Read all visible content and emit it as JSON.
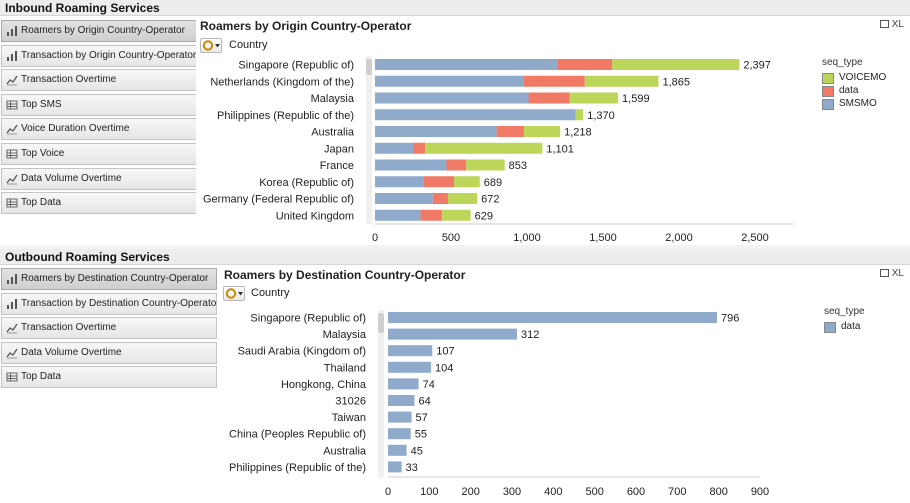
{
  "inbound": {
    "section_title": "Inbound Roaming Services",
    "nav": [
      {
        "label": "Roamers by Origin Country-Operator",
        "icon": "bar-chart-icon",
        "active": true
      },
      {
        "label": "Transaction by Origin Country-Operator",
        "icon": "bar-chart-icon",
        "active": false
      },
      {
        "label": "Transaction Overtime",
        "icon": "line-chart-icon",
        "active": false
      },
      {
        "label": "Top SMS",
        "icon": "table-icon",
        "active": false
      },
      {
        "label": "Voice Duration Overtime",
        "icon": "line-chart-icon",
        "active": false
      },
      {
        "label": "Top Voice",
        "icon": "table-icon",
        "active": false
      },
      {
        "label": "Data Volume Overtime",
        "icon": "line-chart-icon",
        "active": false
      },
      {
        "label": "Top Data",
        "icon": "table-icon",
        "active": false
      }
    ],
    "panel": {
      "title": "Roamers by Origin Country-Operator",
      "xl_label": "XL",
      "dimension_label": "Country"
    }
  },
  "outbound": {
    "section_title": "Outbound Roaming Services",
    "nav": [
      {
        "label": "Roamers by Destination Country-Operator",
        "icon": "bar-chart-icon",
        "active": true
      },
      {
        "label": "Transaction by Destination Country-Operator",
        "icon": "bar-chart-icon",
        "active": false
      },
      {
        "label": "Transaction Overtime",
        "icon": "line-chart-icon",
        "active": false
      },
      {
        "label": "Data Volume Overtime",
        "icon": "line-chart-icon",
        "active": false
      },
      {
        "label": "Top Data",
        "icon": "table-icon",
        "active": false
      }
    ],
    "panel": {
      "title": "Roamers by Destination Country-Operator",
      "xl_label": "XL",
      "dimension_label": "Country"
    }
  },
  "colors": {
    "SMSMO": "#8faacb",
    "data": "#f07a66",
    "VOICEMO": "#bcd65a",
    "outbound_data": "#8faacb"
  },
  "chart_data": [
    {
      "type": "bar",
      "orientation": "horizontal",
      "stacked": true,
      "title": "Roamers by Origin Country-Operator",
      "ylabel": "Country",
      "legend_title": "seq_type",
      "legend_placement": "right",
      "xlim": [
        0,
        2750
      ],
      "xticks": [
        0,
        500,
        1000,
        1500,
        2000,
        2500
      ],
      "xtick_labels": [
        "0",
        "500",
        "1,000",
        "1,500",
        "2,000",
        "2,500"
      ],
      "categories": [
        "Singapore (Republic of)",
        "Netherlands (Kingdom of the)",
        "Malaysia",
        "Philippines (Republic of the)",
        "Australia",
        "Japan",
        "France",
        "Korea (Republic of)",
        "Germany (Federal Republic of)",
        "United Kingdom"
      ],
      "totals": [
        2397,
        1865,
        1599,
        1370,
        1218,
        1101,
        853,
        689,
        672,
        629
      ],
      "total_labels": [
        "2,397",
        "1,865",
        "1,599",
        "1,370",
        "1,218",
        "1,101",
        "853",
        "689",
        "672",
        "629"
      ],
      "series": [
        {
          "name": "SMSMO",
          "values": [
            1200,
            980,
            1010,
            1320,
            800,
            250,
            470,
            320,
            380,
            300
          ]
        },
        {
          "name": "data",
          "values": [
            360,
            400,
            270,
            0,
            180,
            80,
            130,
            200,
            100,
            140
          ]
        },
        {
          "name": "VOICEMO",
          "values": [
            837,
            485,
            319,
            50,
            238,
            771,
            253,
            169,
            192,
            189
          ]
        }
      ],
      "legend_order": [
        "VOICEMO",
        "data",
        "SMSMO"
      ]
    },
    {
      "type": "bar",
      "orientation": "horizontal",
      "stacked": false,
      "title": "Roamers by Destination Country-Operator",
      "ylabel": "Country",
      "legend_title": "seq_type",
      "legend_placement": "right",
      "xlim": [
        0,
        900
      ],
      "xticks": [
        0,
        100,
        200,
        300,
        400,
        500,
        600,
        700,
        800,
        900
      ],
      "xtick_labels": [
        "0",
        "100",
        "200",
        "300",
        "400",
        "500",
        "600",
        "700",
        "800",
        "900"
      ],
      "categories": [
        "Singapore (Republic of)",
        "Malaysia",
        "Saudi Arabia (Kingdom of)",
        "Thailand",
        "Hongkong,  China",
        "31026",
        "Taiwan",
        "China (Peoples Republic of)",
        "Australia",
        "Philippines (Republic of the)"
      ],
      "series": [
        {
          "name": "data",
          "values": [
            796,
            312,
            107,
            104,
            74,
            64,
            57,
            55,
            45,
            33
          ]
        }
      ],
      "value_labels": [
        "796",
        "312",
        "107",
        "104",
        "74",
        "64",
        "57",
        "55",
        "45",
        "33"
      ],
      "legend_order": [
        "data"
      ]
    }
  ]
}
